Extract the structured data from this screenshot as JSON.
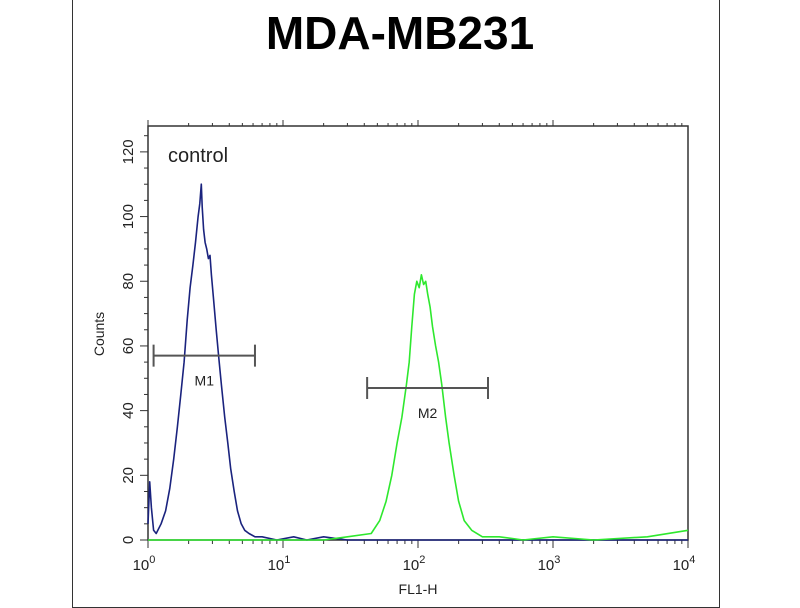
{
  "chart_data": {
    "type": "line",
    "title": "MDA-MB231",
    "xlabel": "FL1-H",
    "ylabel": "Counts",
    "x_scale": "log",
    "xlim": [
      1,
      10000
    ],
    "ylim": [
      0,
      128
    ],
    "y_ticks": [
      0,
      20,
      40,
      60,
      80,
      100,
      120
    ],
    "x_ticks": [
      {
        "base": "10",
        "exp": "0",
        "value": 1
      },
      {
        "base": "10",
        "exp": "1",
        "value": 10
      },
      {
        "base": "10",
        "exp": "2",
        "value": 100
      },
      {
        "base": "10",
        "exp": "3",
        "value": 1000
      },
      {
        "base": "10",
        "exp": "4",
        "value": 10000
      }
    ],
    "annotation": "control",
    "series": [
      {
        "color": "#1a237e",
        "points": [
          [
            1.0,
            5
          ],
          [
            1.03,
            18
          ],
          [
            1.06,
            10
          ],
          [
            1.1,
            3
          ],
          [
            1.15,
            2
          ],
          [
            1.25,
            5
          ],
          [
            1.35,
            9
          ],
          [
            1.45,
            16
          ],
          [
            1.55,
            25
          ],
          [
            1.65,
            35
          ],
          [
            1.75,
            45
          ],
          [
            1.85,
            55
          ],
          [
            1.95,
            68
          ],
          [
            2.05,
            78
          ],
          [
            2.15,
            85
          ],
          [
            2.25,
            92
          ],
          [
            2.35,
            100
          ],
          [
            2.42,
            104
          ],
          [
            2.48,
            110
          ],
          [
            2.52,
            103
          ],
          [
            2.58,
            96
          ],
          [
            2.65,
            92
          ],
          [
            2.72,
            90
          ],
          [
            2.8,
            87
          ],
          [
            2.88,
            88
          ],
          [
            2.95,
            82
          ],
          [
            3.05,
            75
          ],
          [
            3.2,
            65
          ],
          [
            3.35,
            56
          ],
          [
            3.5,
            48
          ],
          [
            3.7,
            38
          ],
          [
            3.9,
            30
          ],
          [
            4.1,
            22
          ],
          [
            4.35,
            15
          ],
          [
            4.6,
            9
          ],
          [
            4.9,
            5
          ],
          [
            5.2,
            3
          ],
          [
            5.6,
            2
          ],
          [
            6.2,
            1
          ],
          [
            7.0,
            1
          ],
          [
            9.0,
            0
          ],
          [
            12,
            1
          ],
          [
            15,
            0
          ],
          [
            20,
            1
          ],
          [
            30,
            0
          ],
          [
            50,
            0
          ],
          [
            100,
            0
          ],
          [
            300,
            0
          ],
          [
            1000,
            0
          ],
          [
            3000,
            0
          ],
          [
            10000,
            0
          ]
        ]
      },
      {
        "color": "#2ee82e",
        "points": [
          [
            1.0,
            0
          ],
          [
            2,
            0
          ],
          [
            5,
            0
          ],
          [
            10,
            0
          ],
          [
            20,
            0
          ],
          [
            30,
            1
          ],
          [
            45,
            2
          ],
          [
            52,
            6
          ],
          [
            58,
            12
          ],
          [
            64,
            20
          ],
          [
            70,
            30
          ],
          [
            76,
            38
          ],
          [
            82,
            48
          ],
          [
            86,
            55
          ],
          [
            90,
            66
          ],
          [
            94,
            76
          ],
          [
            98,
            80
          ],
          [
            102,
            78
          ],
          [
            106,
            82
          ],
          [
            110,
            79
          ],
          [
            114,
            80
          ],
          [
            118,
            76
          ],
          [
            123,
            72
          ],
          [
            128,
            66
          ],
          [
            135,
            60
          ],
          [
            142,
            55
          ],
          [
            150,
            48
          ],
          [
            160,
            38
          ],
          [
            170,
            30
          ],
          [
            185,
            20
          ],
          [
            200,
            12
          ],
          [
            220,
            6
          ],
          [
            250,
            3
          ],
          [
            300,
            1
          ],
          [
            400,
            1
          ],
          [
            600,
            0
          ],
          [
            1000,
            1
          ],
          [
            2000,
            0
          ],
          [
            5000,
            1
          ],
          [
            10000,
            3
          ]
        ]
      }
    ],
    "markers": [
      {
        "label": "M1",
        "range": [
          1.1,
          6.2
        ],
        "y": 57
      },
      {
        "label": "M2",
        "range": [
          42,
          330
        ],
        "y": 47
      }
    ],
    "grid": false
  }
}
